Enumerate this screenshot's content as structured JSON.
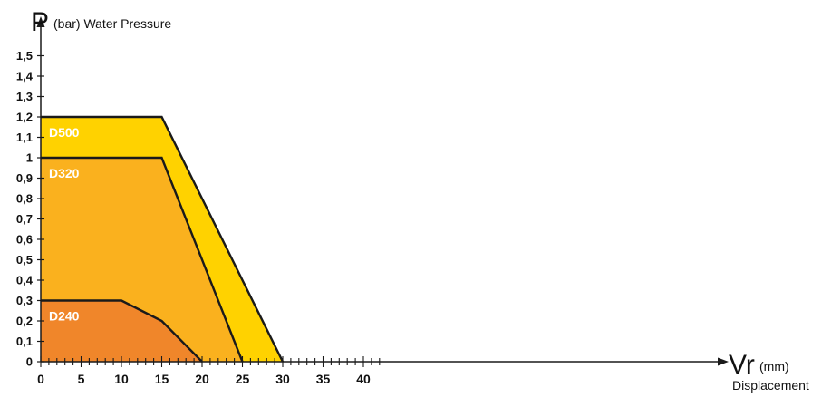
{
  "chart_data": {
    "type": "area",
    "ylabel_symbol": "P",
    "ylabel_unit": "(bar) Water Pressure",
    "xlabel_symbol": "Vr",
    "xlabel_unit": "(mm)",
    "xlabel_caption": "Displacement",
    "xlim": [
      0,
      40
    ],
    "ylim": [
      0,
      1.5
    ],
    "x_ticks": [
      "0",
      "5",
      "10",
      "15",
      "20",
      "25",
      "30",
      "35",
      "40"
    ],
    "y_ticks": [
      "0",
      "0,1",
      "0,2",
      "0,3",
      "0,4",
      "0,5",
      "0,6",
      "0,7",
      "0,8",
      "0,9",
      "1",
      "1,1",
      "1,2",
      "1,3",
      "1,4",
      "1,5"
    ],
    "grid": false,
    "series": [
      {
        "name": "D500",
        "color": "#FFD200",
        "points": [
          [
            0,
            1.2
          ],
          [
            15,
            1.2
          ],
          [
            30,
            0
          ]
        ]
      },
      {
        "name": "D320",
        "color": "#FAB11E",
        "points": [
          [
            0,
            1.0
          ],
          [
            15,
            1.0
          ],
          [
            25,
            0
          ]
        ]
      },
      {
        "name": "D240",
        "color": "#F0862A",
        "points": [
          [
            0,
            0.3
          ],
          [
            10,
            0.3
          ],
          [
            15,
            0.2
          ],
          [
            20,
            0
          ]
        ]
      }
    ]
  }
}
